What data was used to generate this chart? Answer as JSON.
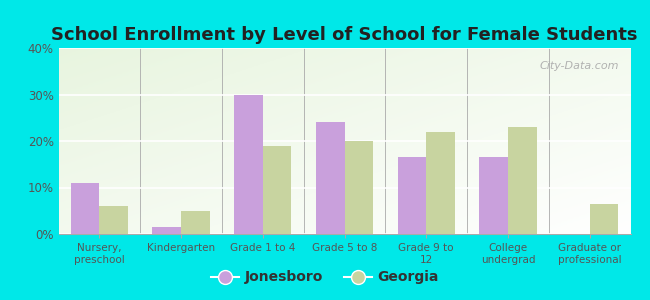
{
  "title": "School Enrollment by Level of School for Female Students",
  "categories": [
    "Nursery,\npreschool",
    "Kindergarten",
    "Grade 1 to 4",
    "Grade 5 to 8",
    "Grade 9 to\n12",
    "College\nundergrad",
    "Graduate or\nprofessional"
  ],
  "jonesboro": [
    11.0,
    1.5,
    30.0,
    24.0,
    16.5,
    16.5,
    0.0
  ],
  "georgia": [
    6.0,
    5.0,
    19.0,
    20.0,
    22.0,
    23.0,
    6.5
  ],
  "jonesboro_color": "#c9a0dc",
  "georgia_color": "#c8d4a0",
  "background_color": "#00e8e8",
  "plot_bg_color": "#e8f5e0",
  "ylim": [
    0,
    40
  ],
  "yticks": [
    0,
    10,
    20,
    30,
    40
  ],
  "ytick_labels": [
    "0%",
    "10%",
    "20%",
    "30%",
    "40%"
  ],
  "legend_jonesboro": "Jonesboro",
  "legend_georgia": "Georgia",
  "watermark": "City-Data.com",
  "title_fontsize": 13,
  "bar_width": 0.35
}
